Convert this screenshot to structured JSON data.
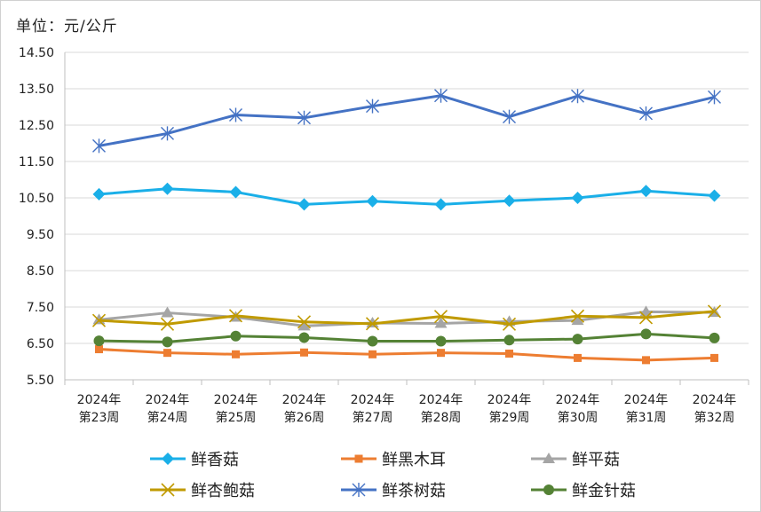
{
  "chart_data": {
    "type": "line",
    "unit_label": "单位：元/公斤",
    "categories": [
      [
        "2024年",
        "第23周"
      ],
      [
        "2024年",
        "第24周"
      ],
      [
        "2024年",
        "第25周"
      ],
      [
        "2024年",
        "第26周"
      ],
      [
        "2024年",
        "第27周"
      ],
      [
        "2024年",
        "第28周"
      ],
      [
        "2024年",
        "第29周"
      ],
      [
        "2024年",
        "第30周"
      ],
      [
        "2024年",
        "第31周"
      ],
      [
        "2024年",
        "第32周"
      ]
    ],
    "y_ticks": [
      "14.50",
      "13.50",
      "12.50",
      "11.50",
      "10.50",
      "9.50",
      "8.50",
      "7.50",
      "6.50",
      "5.50"
    ],
    "ylim": [
      5.5,
      14.5
    ],
    "grid": "horizontal",
    "legend_position": "bottom",
    "series": [
      {
        "name": "鲜香菇",
        "color": "#1AAFE8",
        "marker": "diamond",
        "values": [
          10.6,
          10.75,
          10.66,
          10.32,
          10.41,
          10.32,
          10.42,
          10.5,
          10.69,
          10.56
        ]
      },
      {
        "name": "鲜黑木耳",
        "color": "#ED7D31",
        "marker": "square",
        "values": [
          6.34,
          6.24,
          6.2,
          6.25,
          6.2,
          6.24,
          6.22,
          6.1,
          6.04,
          6.1
        ]
      },
      {
        "name": "鲜平菇",
        "color": "#A5A5A5",
        "marker": "triangle",
        "values": [
          7.15,
          7.34,
          7.22,
          6.98,
          7.06,
          7.05,
          7.1,
          7.13,
          7.37,
          7.35
        ]
      },
      {
        "name": "鲜杏鲍菇",
        "color": "#C09A00",
        "marker": "x",
        "values": [
          7.13,
          7.03,
          7.26,
          7.09,
          7.04,
          7.24,
          7.03,
          7.25,
          7.21,
          7.38
        ]
      },
      {
        "name": "鲜茶树菇",
        "color": "#4472C4",
        "marker": "star",
        "values": [
          11.93,
          12.27,
          12.78,
          12.7,
          13.02,
          13.31,
          12.73,
          13.3,
          12.82,
          13.27
        ]
      },
      {
        "name": "鲜金针菇",
        "color": "#548235",
        "marker": "circle",
        "values": [
          6.57,
          6.54,
          6.7,
          6.66,
          6.56,
          6.56,
          6.59,
          6.62,
          6.76,
          6.65
        ]
      }
    ]
  }
}
